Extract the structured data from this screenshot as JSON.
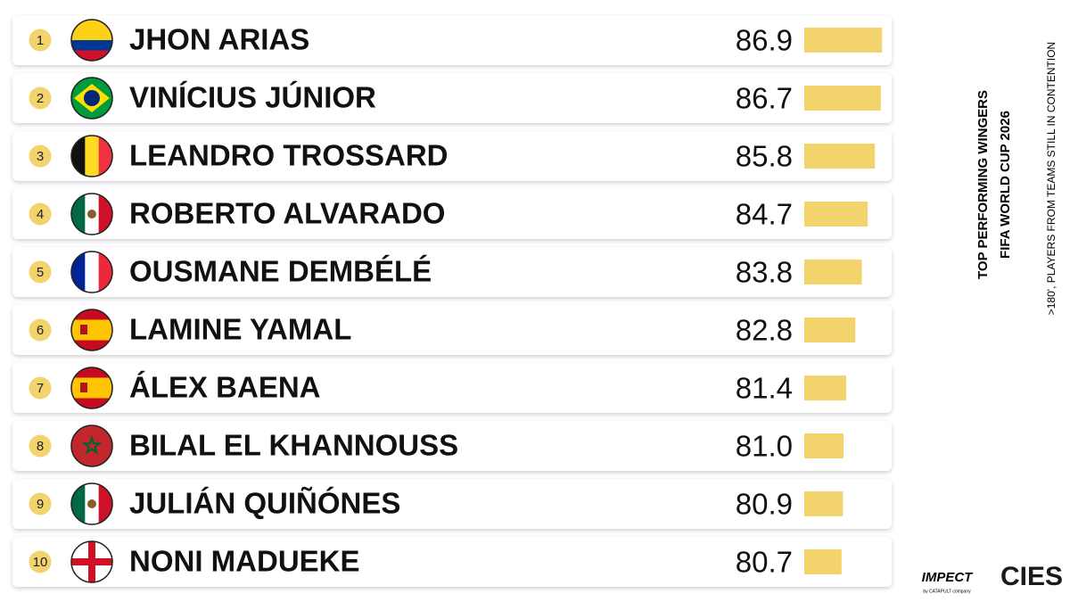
{
  "chart_data": {
    "type": "bar",
    "title": "TOP PERFORMING WINGERS",
    "subtitle": "FIFA WORLD CUP 2026",
    "note": ">180', PLAYERS FROM TEAMS STILL IN CONTENTION",
    "ranks": [
      1,
      2,
      3,
      4,
      5,
      6,
      7,
      8,
      9,
      10
    ],
    "categories": [
      "JHON ARIAS",
      "VINÍCIUS JÚNIOR",
      "LEANDRO TROSSARD",
      "ROBERTO ALVARADO",
      "OUSMANE DEMBÉLÉ",
      "LAMINE YAMAL",
      "ÁLEX BAENA",
      "BILAL EL KHANNOUSS",
      "JULIÁN QUIÑÓNES",
      "NONI MADUEKE"
    ],
    "values": [
      86.9,
      86.7,
      85.8,
      84.7,
      83.8,
      82.8,
      81.4,
      81.0,
      80.9,
      80.7
    ],
    "value_labels": [
      "86.9",
      "86.7",
      "85.8",
      "84.7",
      "83.8",
      "82.8",
      "81.4",
      "81.0",
      "80.9",
      "80.7"
    ],
    "xlim": [
      75,
      87
    ],
    "color": "#f3d36c",
    "logos": [
      "IMPECT",
      "by CATAPULT company",
      "CIES"
    ]
  }
}
